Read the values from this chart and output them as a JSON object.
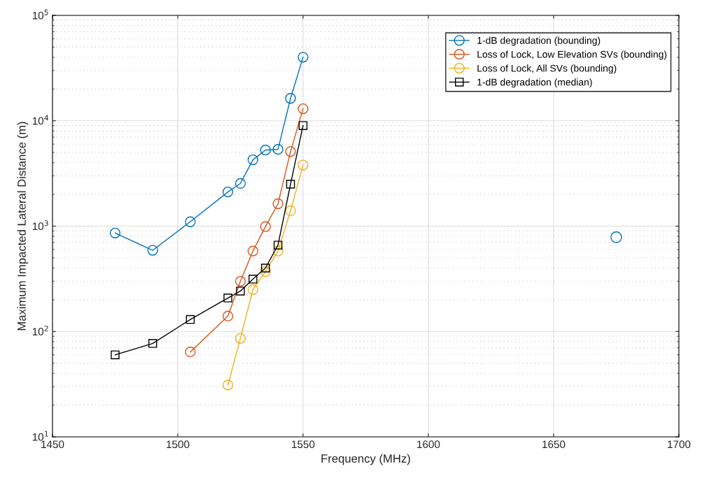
{
  "chart_data": {
    "type": "line",
    "xlabel": "Frequency (MHz)",
    "ylabel": "Maximum Impacted Lateral Distance (m)",
    "xlim": [
      1450,
      1700
    ],
    "xticks": [
      1450,
      1500,
      1550,
      1600,
      1650,
      1700
    ],
    "ylim": [
      10,
      100000
    ],
    "yticks": [
      {
        "value": 10,
        "label": "10$^{1}$"
      },
      {
        "value": 100,
        "label": "10$^{2}$"
      },
      {
        "value": 1000,
        "label": "10$^{3}$"
      },
      {
        "value": 10000,
        "label": "10$^{4}$"
      },
      {
        "value": 100000,
        "label": "10$^{5}$"
      }
    ],
    "log": "y",
    "grid": true,
    "legend": "top right",
    "marker": "circle",
    "series": [
      {
        "name": "1-dB degradation (bounding)",
        "color": "#0072bd",
        "x": [
          1475,
          1490,
          1505,
          1520,
          1525,
          1530,
          1535,
          1540,
          1545,
          1550
        ],
        "values": [
          860,
          590,
          1100,
          2110,
          2540,
          4260,
          5270,
          5350,
          16300,
          40100
        ]
      },
      {
        "name": "Loss of Lock, Low Elevation SVs (bounding)",
        "color": "#d95319",
        "x": [
          1505,
          1520,
          1525,
          1530,
          1535,
          1540,
          1545,
          1550
        ],
        "values": [
          64,
          140,
          300,
          580,
          990,
          1630,
          5100,
          13000
        ]
      },
      {
        "name": "Loss of Lock, All SVs (bounding)",
        "color": "#edb120",
        "x": [
          1520,
          1525,
          1530,
          1535,
          1540,
          1545,
          1550
        ],
        "values": [
          31,
          86,
          250,
          370,
          580,
          1400,
          3800
        ]
      },
      {
        "name": "1-dB degradation (median)",
        "color": "#000000",
        "marker": "square",
        "x": [
          1475,
          1490,
          1505,
          1520,
          1525,
          1530,
          1535,
          1540,
          1545,
          1550
        ],
        "values": [
          60,
          77,
          130,
          208,
          242,
          314,
          400,
          660,
          2500,
          9000
        ]
      },
      {
        "type": "scatter",
        "color": "#0072bd",
        "x": [
          1675
        ],
        "values": [
          785
        ]
      }
    ]
  }
}
